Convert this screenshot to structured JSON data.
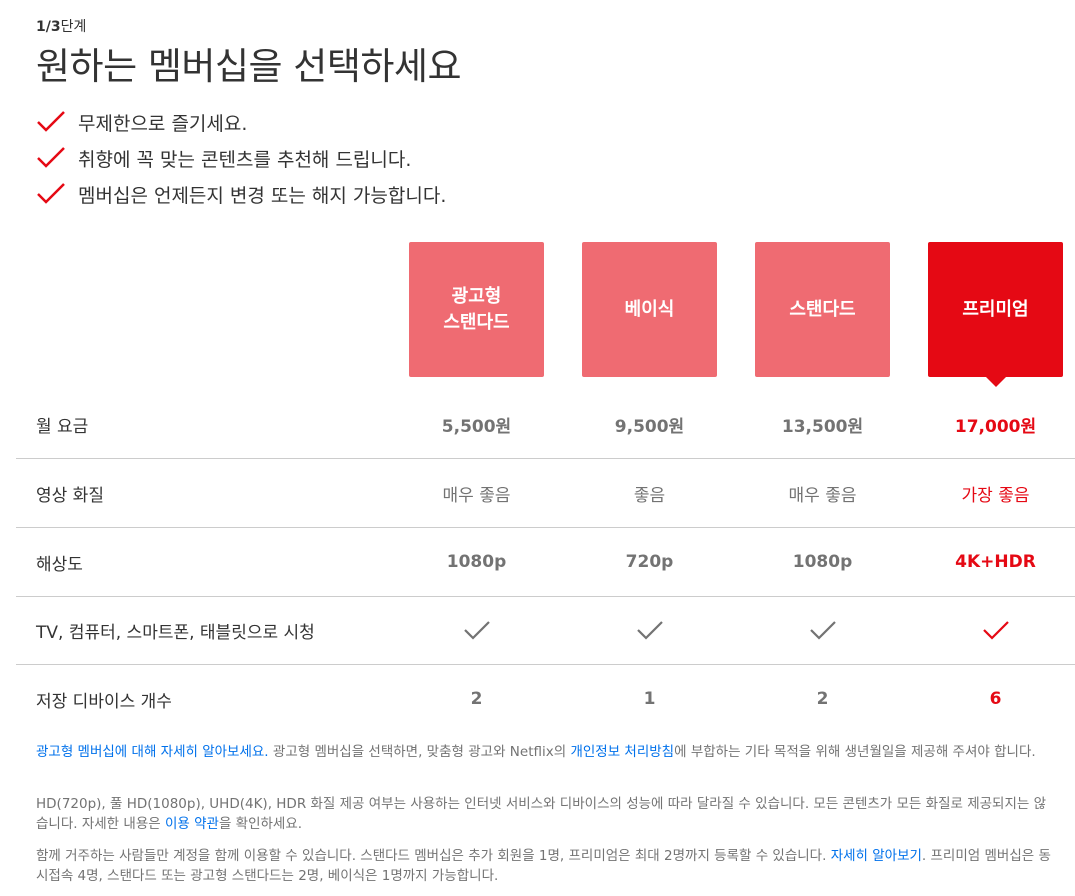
{
  "step": {
    "current": "1/3",
    "label": "단계"
  },
  "title": "원하는 멤버십을 선택하세요",
  "benefits": [
    "무제한으로 즐기세요.",
    "취향에 꼭 맞는 콘텐츠를 추천해 드립니다.",
    "멤버십은 언제든지 변경 또는 해지 가능합니다."
  ],
  "plans": [
    {
      "line1": "광고형",
      "line2": "스탠다드",
      "selected": false
    },
    {
      "line1": "베이식",
      "line2": "",
      "selected": false
    },
    {
      "line1": "스탠다드",
      "line2": "",
      "selected": false
    },
    {
      "line1": "프리미엄",
      "line2": "",
      "selected": true
    }
  ],
  "rows": {
    "price": {
      "label": "월 요금",
      "values": [
        "5,500원",
        "9,500원",
        "13,500원",
        "17,000원"
      ]
    },
    "quality": {
      "label": "영상 화질",
      "values": [
        "매우 좋음",
        "좋음",
        "매우 좋음",
        "가장 좋음"
      ]
    },
    "resolution": {
      "label": "해상도",
      "values": [
        "1080p",
        "720p",
        "1080p",
        "4K+HDR"
      ]
    },
    "devices": {
      "label": "TV, 컴퓨터, 스마트폰, 태블릿으로 시청",
      "values": [
        true,
        true,
        true,
        true
      ]
    },
    "downloads": {
      "label": "저장 디바이스 개수",
      "values": [
        "2",
        "1",
        "2",
        "6"
      ]
    }
  },
  "notes": {
    "ad": {
      "link1": "광고형 멤버십에 대해 자세히 알아보세요.",
      "text1": " 광고형 멤버십을 선택하면, 맞춤형 광고와 Netflix의 ",
      "link2": "개인정보 처리방침",
      "text2": "에 부합하는 기타 목적을 위해 생년월일을 제공해 주셔야 합니다."
    },
    "quality": {
      "text1": "HD(720p), 풀 HD(1080p), UHD(4K), HDR 화질 제공 여부는 사용하는 인터넷 서비스와 디바이스의 성능에 따라 달라질 수 있습니다. 모든 콘텐츠가 모든 화질로 제공되지는 않습니다. 자세한 내용은 ",
      "link1": "이용 약관",
      "text2": "을 확인하세요."
    },
    "household": {
      "text1": "함께 거주하는 사람들만 계정을 함께 이용할 수 있습니다. 스탠다드 멤버십은 추가 회원을 1명, 프리미엄은 최대 2명까지 등록할 수 있습니다. ",
      "link1": "자세히 알아보기",
      "text2": ". 프리미엄 멤버십은 동시접속 4명, 스탠다드 또는 광고형 스탠다드는 2명, 베이식은 1명까지 가능합니다."
    }
  },
  "colors": {
    "brand": "#e50914",
    "plan_unselected": "#ef6b72",
    "link": "#0071eb",
    "muted": "#737373",
    "divider": "#cccccc"
  },
  "icons": {
    "benefit": "checkmark-icon",
    "feature": "checkmark-icon"
  }
}
